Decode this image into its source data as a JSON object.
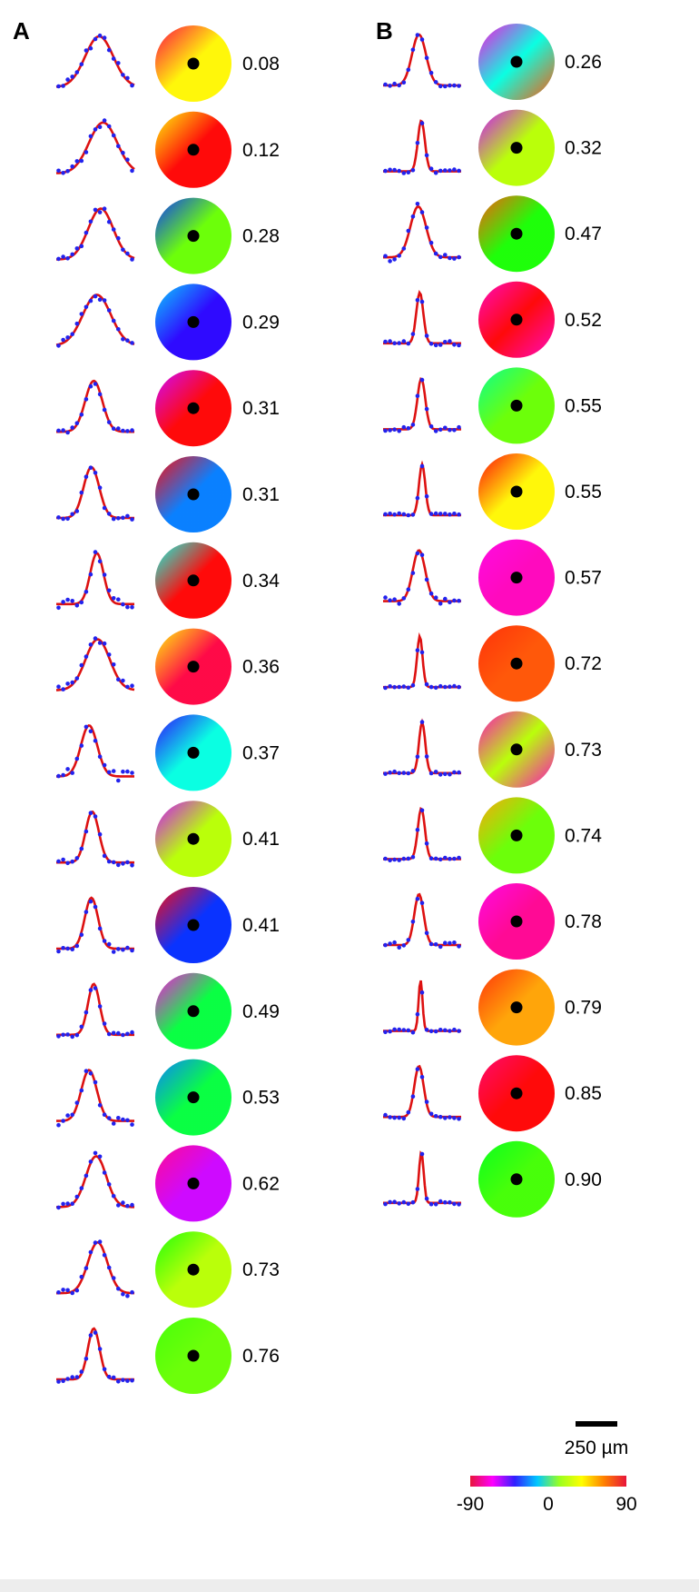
{
  "panels": [
    {
      "label": "A",
      "rows": [
        {
          "value": "0.08",
          "width": 0.36,
          "center": 0.55,
          "noise": 0.09,
          "angles": [
            -90,
            60,
            60
          ]
        },
        {
          "value": "0.12",
          "width": 0.36,
          "center": 0.6,
          "noise": 0.07,
          "angles": [
            60,
            150,
            150
          ]
        },
        {
          "value": "0.28",
          "width": 0.32,
          "center": 0.57,
          "noise": 0.08,
          "angles": [
            -30,
            40,
            40
          ]
        },
        {
          "value": "0.29",
          "width": 0.36,
          "center": 0.52,
          "noise": 0.08,
          "angles": [
            -10,
            -40,
            -40
          ]
        },
        {
          "value": "0.31",
          "width": 0.22,
          "center": 0.48,
          "noise": 0.05,
          "angles": [
            -60,
            90,
            90
          ]
        },
        {
          "value": "0.31",
          "width": 0.2,
          "center": 0.45,
          "noise": 0.05,
          "angles": [
            90,
            -20,
            -20
          ]
        },
        {
          "value": "0.34",
          "width": 0.17,
          "center": 0.52,
          "noise": 0.09,
          "angles": [
            0,
            120,
            120
          ]
        },
        {
          "value": "0.36",
          "width": 0.31,
          "center": 0.53,
          "noise": 0.09,
          "angles": [
            60,
            -90,
            -90
          ]
        },
        {
          "value": "0.37",
          "width": 0.21,
          "center": 0.42,
          "noise": 0.11,
          "angles": [
            -40,
            0,
            0
          ]
        },
        {
          "value": "0.41",
          "width": 0.17,
          "center": 0.46,
          "noise": 0.06,
          "angles": [
            -60,
            50,
            50
          ]
        },
        {
          "value": "0.41",
          "width": 0.17,
          "center": 0.45,
          "noise": 0.07,
          "angles": [
            90,
            -30,
            -30
          ]
        },
        {
          "value": "0.49",
          "width": 0.15,
          "center": 0.48,
          "noise": 0.05,
          "angles": [
            -70,
            20,
            20
          ]
        },
        {
          "value": "0.53",
          "width": 0.2,
          "center": 0.42,
          "noise": 0.09,
          "angles": [
            -20,
            20,
            20
          ]
        },
        {
          "value": "0.62",
          "width": 0.26,
          "center": 0.51,
          "noise": 0.07,
          "angles": [
            -80,
            -60,
            -60
          ]
        },
        {
          "value": "0.73",
          "width": 0.25,
          "center": 0.53,
          "noise": 0.07,
          "angles": [
            30,
            50,
            50
          ]
        },
        {
          "value": "0.76",
          "width": 0.15,
          "center": 0.48,
          "noise": 0.05,
          "angles": [
            35,
            40,
            40
          ]
        }
      ]
    },
    {
      "label": "B",
      "rows": [
        {
          "value": "0.26",
          "width": 0.18,
          "center": 0.46,
          "noise": 0.04,
          "angles": [
            -70,
            0,
            80
          ]
        },
        {
          "value": "0.32",
          "width": 0.09,
          "center": 0.49,
          "noise": 0.04,
          "angles": [
            -60,
            50,
            50
          ]
        },
        {
          "value": "0.47",
          "width": 0.2,
          "center": 0.45,
          "noise": 0.08,
          "angles": [
            80,
            30,
            30
          ]
        },
        {
          "value": "0.52",
          "width": 0.09,
          "center": 0.47,
          "noise": 0.04,
          "angles": [
            -75,
            90,
            -75
          ]
        },
        {
          "value": "0.55",
          "width": 0.1,
          "center": 0.49,
          "noise": 0.04,
          "angles": [
            10,
            40,
            40
          ]
        },
        {
          "value": "0.55",
          "width": 0.08,
          "center": 0.5,
          "noise": 0.04,
          "angles": [
            90,
            60,
            60
          ]
        },
        {
          "value": "0.57",
          "width": 0.16,
          "center": 0.46,
          "noise": 0.09,
          "angles": [
            -70,
            -75,
            -75
          ]
        },
        {
          "value": "0.72",
          "width": 0.07,
          "center": 0.47,
          "noise": 0.02,
          "angles": [
            85,
            80,
            80
          ]
        },
        {
          "value": "0.73",
          "width": 0.08,
          "center": 0.5,
          "noise": 0.03,
          "angles": [
            -75,
            50,
            -75
          ]
        },
        {
          "value": "0.74",
          "width": 0.09,
          "center": 0.49,
          "noise": 0.03,
          "angles": [
            70,
            40,
            40
          ]
        },
        {
          "value": "0.78",
          "width": 0.12,
          "center": 0.46,
          "noise": 0.05,
          "angles": [
            -70,
            -80,
            -80
          ]
        },
        {
          "value": "0.79",
          "width": 0.05,
          "center": 0.48,
          "noise": 0.03,
          "angles": [
            85,
            70,
            70
          ]
        },
        {
          "value": "0.85",
          "width": 0.12,
          "center": 0.46,
          "noise": 0.04,
          "angles": [
            -85,
            90,
            90
          ]
        },
        {
          "value": "0.90",
          "width": 0.06,
          "center": 0.49,
          "noise": 0.03,
          "angles": [
            25,
            35,
            35
          ]
        }
      ]
    }
  ],
  "scale_bar": {
    "label": "250 µm"
  },
  "colorbar": {
    "min_label": "-90",
    "mid_label": "0",
    "max_label": "90",
    "stops": [
      "#e8143a",
      "#ff00ff",
      "#3020ff",
      "#00c8ff",
      "#9aff20",
      "#ffff00",
      "#ff8000",
      "#e8143a"
    ]
  },
  "colors": {
    "fit_curve": "#dd1111",
    "data_points": "#2222ee",
    "center_dot": "#000000"
  }
}
